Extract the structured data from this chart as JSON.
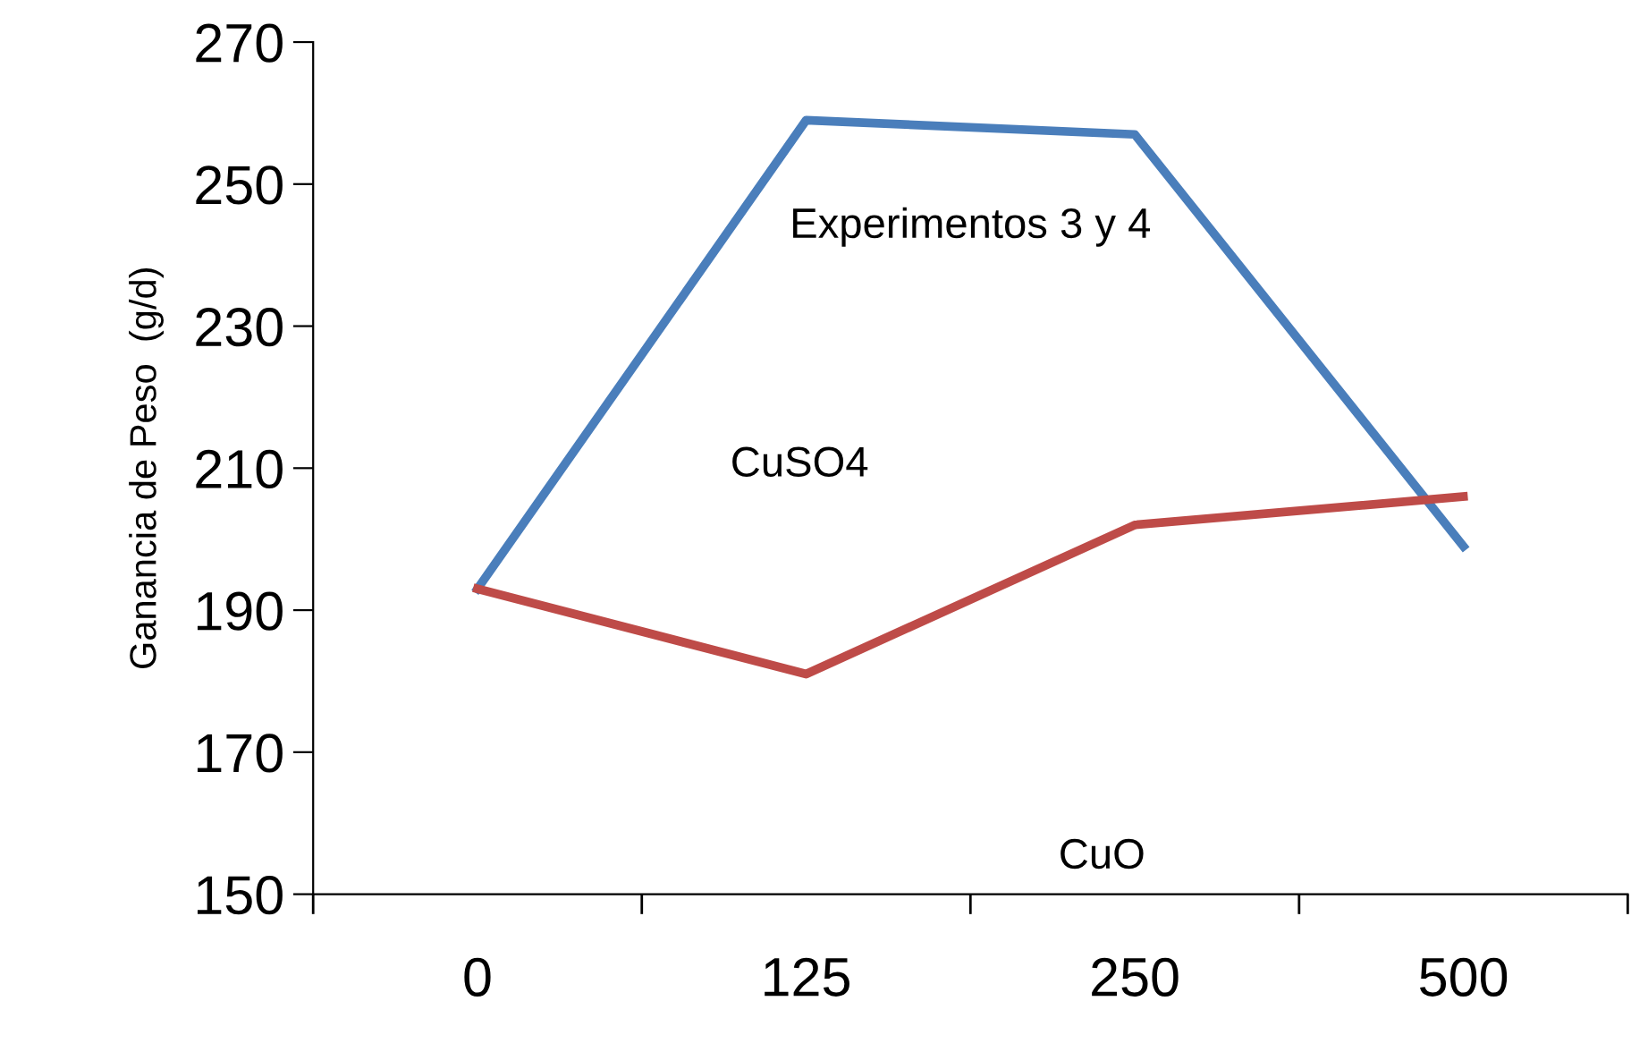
{
  "chart_data": {
    "type": "line",
    "ylabel": "Ganancia de Peso  (g/d)",
    "annotations": [
      "Experimentos 3 y 4",
      "CuSO4",
      "CuO"
    ],
    "categories": [
      "0",
      "125",
      "250",
      "500"
    ],
    "series": [
      {
        "color": "#4a7ebb",
        "values": [
          193,
          259,
          257,
          199
        ]
      },
      {
        "color": "#be4b48",
        "values": [
          193,
          181,
          202,
          206
        ]
      }
    ],
    "ylim": [
      150,
      270
    ],
    "yticks": [
      150,
      170,
      190,
      210,
      230,
      250,
      270
    ],
    "grid": false,
    "marker": "none",
    "line_style": "solid"
  }
}
